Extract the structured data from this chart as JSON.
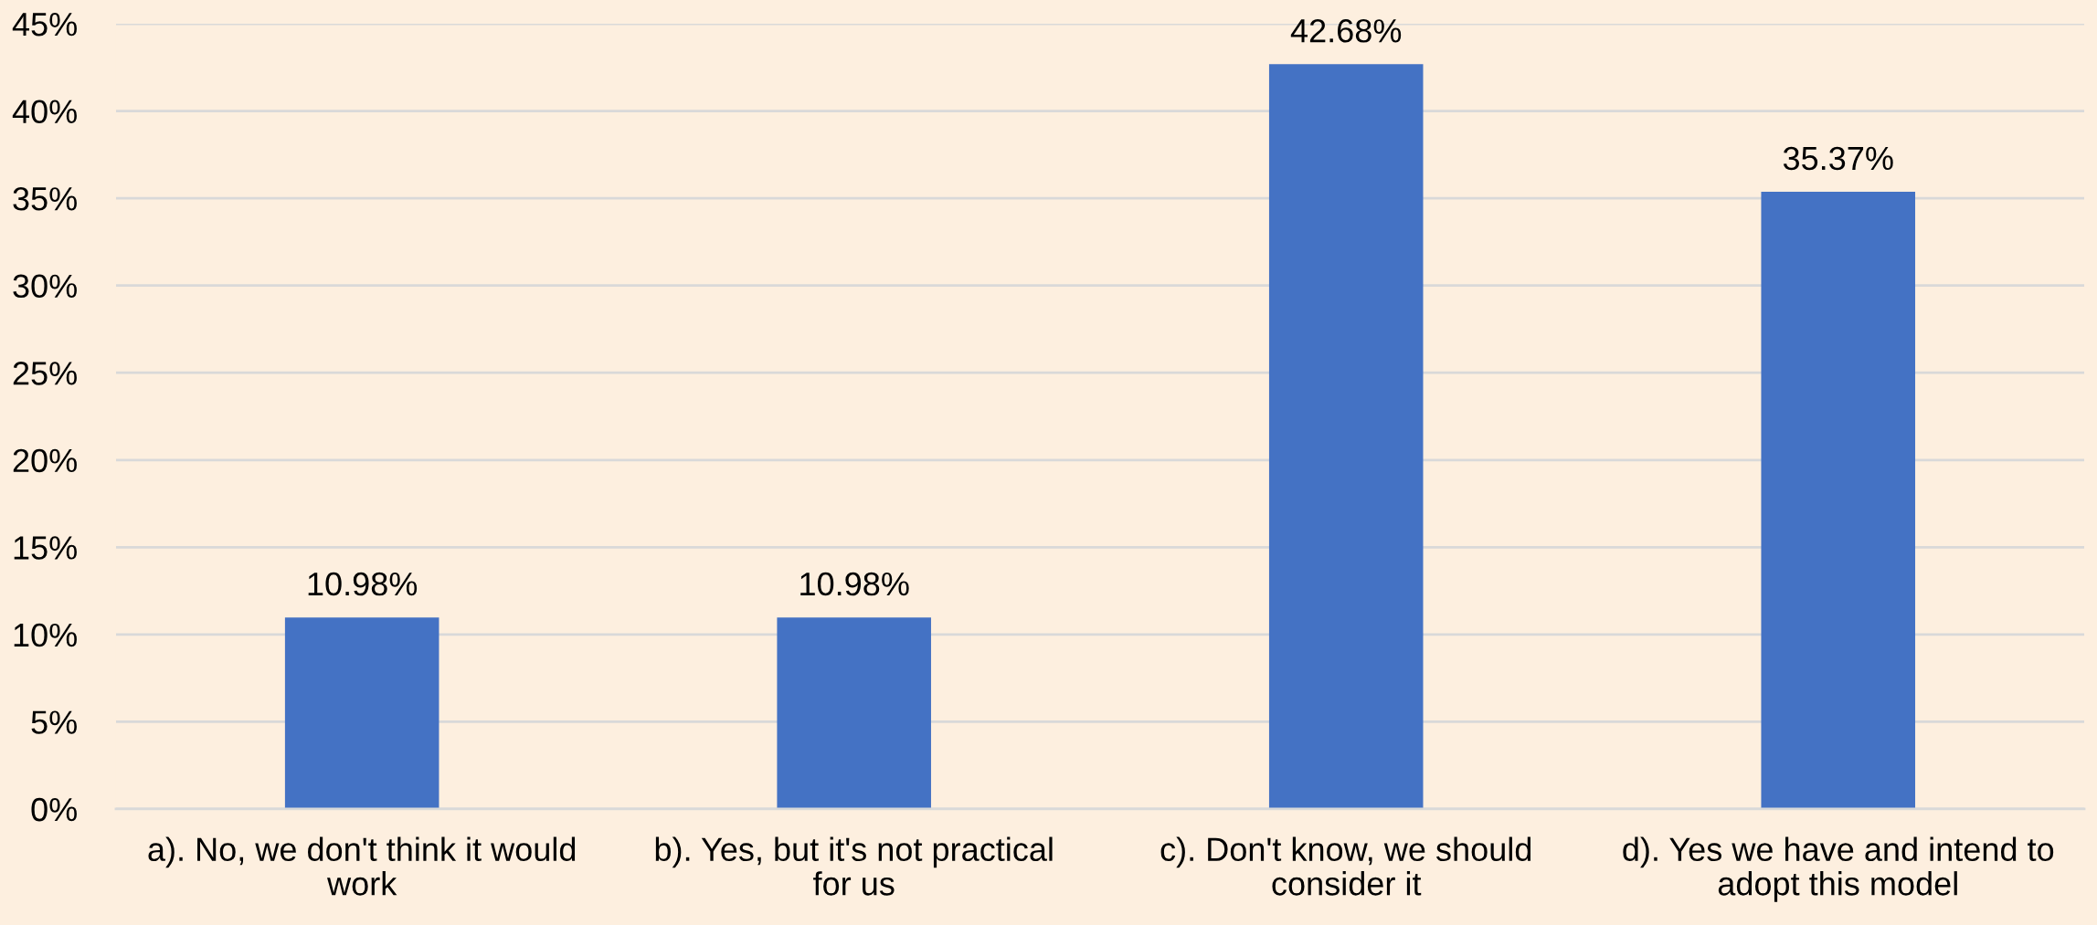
{
  "chart_data": {
    "type": "bar",
    "categories": [
      "a). No, we don't think it would\nwork",
      "b). Yes, but it's not practical\nfor us",
      "c). Don't know, we should\nconsider it",
      "d). Yes we have and intend to\nadopt this model"
    ],
    "values": [
      10.98,
      10.98,
      42.68,
      35.37
    ],
    "color": "#4472c4",
    "value_labels": [
      "10.98%",
      "10.98%",
      "42.68%",
      "35.37%"
    ],
    "ylim": [
      0,
      45
    ],
    "yticks": [
      {
        "value": 0,
        "label": "0%"
      },
      {
        "value": 5,
        "label": "5%"
      },
      {
        "value": 10,
        "label": "10%"
      },
      {
        "value": 15,
        "label": "15%"
      },
      {
        "value": 20,
        "label": "20%"
      },
      {
        "value": 25,
        "label": "25%"
      },
      {
        "value": 30,
        "label": "30%"
      },
      {
        "value": 35,
        "label": "35%"
      },
      {
        "value": 40,
        "label": "40%"
      },
      {
        "value": 45,
        "label": "45%"
      }
    ],
    "grid": "y",
    "legend": false
  }
}
